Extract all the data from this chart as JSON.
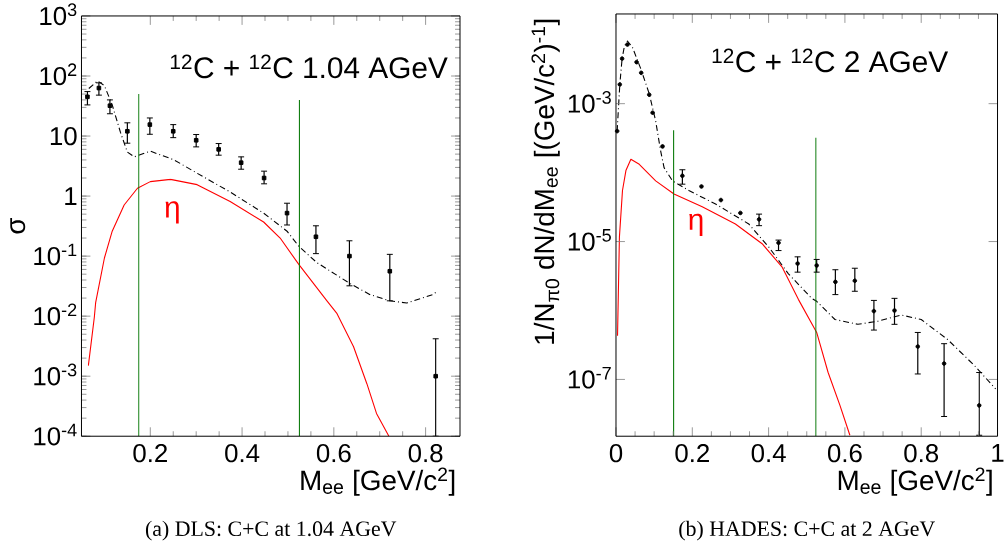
{
  "chart_data": [
    {
      "type": "line",
      "title": "$^{12}$C + $^{12}$C  1.04 AGeV",
      "xlabel": "M$_{ee}$ [GeV/c$^{2}$]",
      "ylabel": "σ",
      "log": "y",
      "xlim": [
        0.05,
        0.875
      ],
      "ylim": [
        0.0001,
        1000
      ],
      "xticks": [
        0.2,
        0.4,
        0.6,
        0.8
      ],
      "yticks": [
        {
          "value": 0.0001,
          "label": "10$^{-4}$"
        },
        {
          "value": 0.001,
          "label": "10$^{-3}$"
        },
        {
          "value": 0.01,
          "label": "10$^{-2}$"
        },
        {
          "value": 0.1,
          "label": "10$^{-1}$"
        },
        {
          "value": 1,
          "label": "1"
        },
        {
          "value": 10,
          "label": "10"
        },
        {
          "value": 100,
          "label": "10$^{2}$"
        },
        {
          "value": 1000,
          "label": "10$^{3}$"
        }
      ],
      "annotations": [
        {
          "text": "η",
          "x": 0.2,
          "y": 1.74
        },
        "(a) DLS: C+C at 1.04 AGeV"
      ],
      "series": [
        {
          "color": "#000000",
          "line_style": "dashed",
          "x": [
            0.066,
            0.085,
            0.1,
            0.117,
            0.135,
            0.15,
            0.165,
            0.2,
            0.252,
            0.302,
            0.374,
            0.447,
            0.498,
            0.524,
            0.563,
            0.635,
            0.678,
            0.722,
            0.759,
            0.817,
            0.825
          ],
          "values": [
            62,
            83,
            69,
            33,
            11.5,
            5.4,
            4.5,
            5.6,
            4.0,
            2.4,
            1.17,
            0.52,
            0.26,
            0.145,
            0.078,
            0.035,
            0.023,
            0.018,
            0.0166,
            0.023,
            0.026
          ]
        },
        {
          "color": "#ff0000",
          "x": [
            0.065,
            0.078,
            0.081,
            0.1,
            0.117,
            0.143,
            0.172,
            0.2,
            0.244,
            0.302,
            0.374,
            0.447,
            0.483,
            0.524,
            0.585,
            0.607,
            0.643,
            0.672,
            0.693,
            0.72
          ],
          "values": [
            0.0015,
            0.0096,
            0.017,
            0.093,
            0.26,
            0.71,
            1.35,
            1.74,
            1.9,
            1.55,
            0.81,
            0.37,
            0.2,
            0.072,
            0.018,
            0.011,
            0.0031,
            0.00075,
            0.00024,
            0.0001
          ]
        },
        {
          "color": "#0a7a0a",
          "x": [
            0.175,
            0.175
          ],
          "values": [
            0.0001,
            50
          ]
        },
        {
          "color": "#0a7a0a",
          "x": [
            0.525,
            0.525
          ],
          "values": [
            0.0001,
            40
          ]
        },
        {
          "type": "scatter",
          "color": "#000000",
          "marker": "square",
          "x": [
            0.063,
            0.088,
            0.112,
            0.15,
            0.199,
            0.25,
            0.3,
            0.349,
            0.398,
            0.448,
            0.498,
            0.561,
            0.634,
            0.722,
            0.822
          ],
          "values": [
            45,
            63,
            32,
            12,
            15.5,
            12,
            8.5,
            6.0,
            3.6,
            2.0,
            0.52,
            0.21,
            0.1,
            0.056,
            0.001
          ],
          "errors": [
            [
              33,
              55
            ],
            [
              48,
              77
            ],
            [
              23.5,
              40
            ],
            [
              7.6,
              16.6
            ],
            [
              10.7,
              20
            ],
            [
              9.4,
              15.5
            ],
            [
              6.6,
              10.6
            ],
            [
              4.8,
              7.5
            ],
            [
              2.8,
              4.5
            ],
            [
              1.6,
              2.6
            ],
            [
              0.33,
              0.76
            ],
            [
              0.11,
              0.32
            ],
            [
              0.032,
              0.18
            ],
            [
              0.018,
              0.107
            ],
            [
              0.0001,
              0.0042
            ]
          ]
        }
      ]
    },
    {
      "type": "line",
      "title": "$^{12}$C + $^{12}$C  2 AGeV",
      "xlabel": "M$_{ee}$ [GeV/c$^{2}$]",
      "ylabel": "1/N$_{π0}$  dN/dM$_{ee}$  [(GeV/c$^{2}$)$^{-1}$]",
      "log": "y",
      "xlim": [
        0,
        1
      ],
      "ylim": [
        1.5e-08,
        0.02
      ],
      "xticks": [
        0,
        0.2,
        0.4,
        0.6,
        0.8,
        1
      ],
      "yticks": [
        {
          "value": 1e-07,
          "label": "10$^{-7}$"
        },
        {
          "value": 1e-05,
          "label": "10$^{-5}$"
        },
        {
          "value": 0.001,
          "label": "10$^{-3}$"
        }
      ],
      "annotations": [
        {
          "text": "η",
          "x": 0.152,
          "y": 4.9e-05
        },
        "(b) HADES: C+C at 2 AGeV"
      ],
      "series": [
        {
          "color": "#000000",
          "line_style": "dashed",
          "x": [
            0.003,
            0.01,
            0.016,
            0.022,
            0.03,
            0.043,
            0.065,
            0.087,
            0.104,
            0.117,
            0.126,
            0.148,
            0.191,
            0.261,
            0.348,
            0.4,
            0.452,
            0.513,
            0.526,
            0.574,
            0.634,
            0.687,
            0.748,
            0.8,
            0.869,
            0.939,
            0.995
          ],
          "values": [
            0.0004,
            0.0019,
            0.0045,
            0.0068,
            0.0081,
            0.0066,
            0.0032,
            0.0014,
            0.00056,
            0.000206,
            0.000118,
            7.6e-05,
            5.5e-05,
            3.5e-05,
            1.8e-05,
            8.4e-06,
            3.4e-06,
            1.5e-06,
            1.36e-06,
            7.4e-07,
            6.3e-07,
            7e-07,
            8.6e-07,
            7.4e-07,
            3.8e-07,
            1.6e-07,
            7.3e-08
          ]
        },
        {
          "color": "#ff0000",
          "x": [
            0.004,
            0.009,
            0.017,
            0.026,
            0.039,
            0.061,
            0.104,
            0.152,
            0.226,
            0.313,
            0.383,
            0.435,
            0.478,
            0.526,
            0.556,
            0.587,
            0.613
          ],
          "values": [
            4.3e-07,
            1.17e-05,
            5.5e-05,
            0.000107,
            0.000156,
            0.000132,
            7.6e-05,
            4.9e-05,
            3.2e-05,
            1.8e-05,
            9.3e-06,
            4.3e-06,
            1.45e-06,
            4.8e-07,
            1.26e-07,
            4.2e-08,
            1.55e-08
          ]
        },
        {
          "color": "#0a7a0a",
          "x": [
            0.151,
            0.151
          ],
          "values": [
            1.5e-08,
            0.00041
          ]
        },
        {
          "color": "#0a7a0a",
          "x": [
            0.524,
            0.524
          ],
          "values": [
            1.5e-08,
            0.00032
          ]
        },
        {
          "type": "scatter",
          "color": "#000000",
          "marker": "circle",
          "x": [
            0.003,
            0.01,
            0.016,
            0.03,
            0.054,
            0.066,
            0.087,
            0.096,
            0.122,
            0.174,
            0.224,
            0.275,
            0.326,
            0.375,
            0.426,
            0.476,
            0.526,
            0.575,
            0.626,
            0.676,
            0.73,
            0.791,
            0.86,
            0.952
          ],
          "values": [
            0.0004,
            0.0019,
            0.0045,
            0.0072,
            0.004,
            0.0028,
            0.00135,
            0.00074,
            0.00024,
            9e-05,
            6.3e-05,
            4e-05,
            2.6e-05,
            2.1e-05,
            9.6e-06,
            4.8e-06,
            4.5e-06,
            2.6e-06,
            2.7e-06,
            9.8e-07,
            1e-06,
            3e-07,
            1.7e-07,
            4.2e-08
          ],
          "errors": [
            null,
            null,
            null,
            null,
            null,
            null,
            null,
            null,
            null,
            [
              6.8e-05,
              0.00011
            ],
            null,
            null,
            null,
            [
              1.7e-05,
              2.5e-05
            ],
            [
              7.4e-06,
              1.05e-05
            ],
            [
              3.6e-06,
              6e-06
            ],
            [
              3.6e-06,
              5.5e-06
            ],
            [
              1.7e-06,
              3.9e-06
            ],
            [
              1.9e-06,
              4.1e-06
            ],
            [
              5.2e-07,
              1.4e-06
            ],
            [
              6.3e-07,
              1.5e-06
            ],
            [
              1.2e-07,
              4.8e-07
            ],
            [
              2.9e-08,
              3.3e-07
            ],
            [
              1.55e-08,
              1.26e-07
            ]
          ]
        }
      ]
    }
  ]
}
